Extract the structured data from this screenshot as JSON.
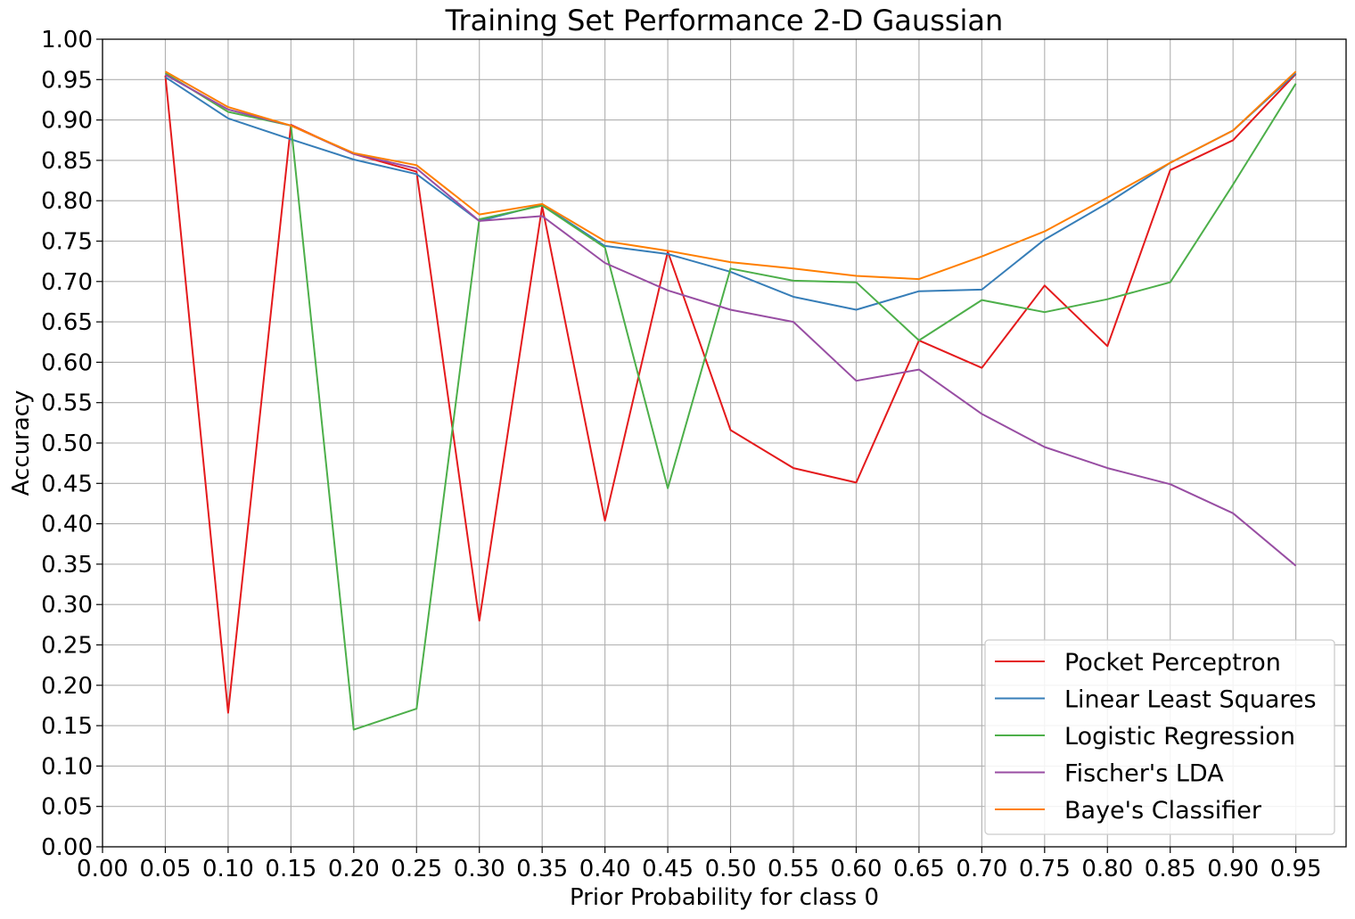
{
  "chart_data": {
    "type": "line",
    "title": "Training Set Performance 2-D Gaussian",
    "xlabel": "Prior Probability for class 0",
    "ylabel": "Accuracy",
    "xlim": [
      0.0,
      0.99
    ],
    "ylim": [
      0.0,
      1.0
    ],
    "xticks": [
      "0.00",
      "0.05",
      "0.10",
      "0.15",
      "0.20",
      "0.25",
      "0.30",
      "0.35",
      "0.40",
      "0.45",
      "0.50",
      "0.55",
      "0.60",
      "0.65",
      "0.70",
      "0.75",
      "0.80",
      "0.85",
      "0.90",
      "0.95"
    ],
    "yticks": [
      "0.00",
      "0.05",
      "0.10",
      "0.15",
      "0.20",
      "0.25",
      "0.30",
      "0.35",
      "0.40",
      "0.45",
      "0.50",
      "0.55",
      "0.60",
      "0.65",
      "0.70",
      "0.75",
      "0.80",
      "0.85",
      "0.90",
      "0.95",
      "1.00"
    ],
    "grid": true,
    "legend_position": "lower-right",
    "x": [
      0.05,
      0.1,
      0.15,
      0.2,
      0.25,
      0.3,
      0.35,
      0.4,
      0.45,
      0.5,
      0.55,
      0.6,
      0.65,
      0.7,
      0.75,
      0.8,
      0.85,
      0.9,
      0.95
    ],
    "series": [
      {
        "name": "Pocket Perceptron",
        "color": "#e41a1c",
        "values": [
          0.955,
          0.166,
          0.894,
          0.858,
          0.836,
          0.28,
          0.793,
          0.404,
          0.737,
          0.516,
          0.469,
          0.451,
          0.627,
          0.593,
          0.695,
          0.62,
          0.838,
          0.875,
          0.957
        ]
      },
      {
        "name": "Linear Least Squares",
        "color": "#377eb8",
        "values": [
          0.953,
          0.902,
          0.876,
          0.851,
          0.833,
          0.775,
          0.795,
          0.744,
          0.734,
          0.712,
          0.681,
          0.665,
          0.688,
          0.69,
          0.752,
          0.797,
          0.847,
          0.887,
          0.958
        ]
      },
      {
        "name": "Logistic Regression",
        "color": "#4daf4a",
        "values": [
          0.958,
          0.91,
          0.893,
          0.145,
          0.171,
          0.777,
          0.794,
          0.742,
          0.444,
          0.716,
          0.701,
          0.699,
          0.627,
          0.677,
          0.662,
          0.678,
          0.699,
          0.82,
          0.945
        ]
      },
      {
        "name": "Fischer's LDA",
        "color": "#984ea3",
        "values": [
          0.956,
          0.913,
          0.893,
          0.858,
          0.84,
          0.775,
          0.781,
          0.723,
          0.689,
          0.665,
          0.65,
          0.577,
          0.591,
          0.536,
          0.495,
          0.469,
          0.449,
          0.413,
          0.348
        ]
      },
      {
        "name": "Baye's Classifier",
        "color": "#ff7f00",
        "values": [
          0.96,
          0.916,
          0.893,
          0.859,
          0.844,
          0.783,
          0.796,
          0.75,
          0.738,
          0.724,
          0.716,
          0.707,
          0.703,
          0.731,
          0.762,
          0.804,
          0.847,
          0.887,
          0.96
        ]
      }
    ]
  }
}
